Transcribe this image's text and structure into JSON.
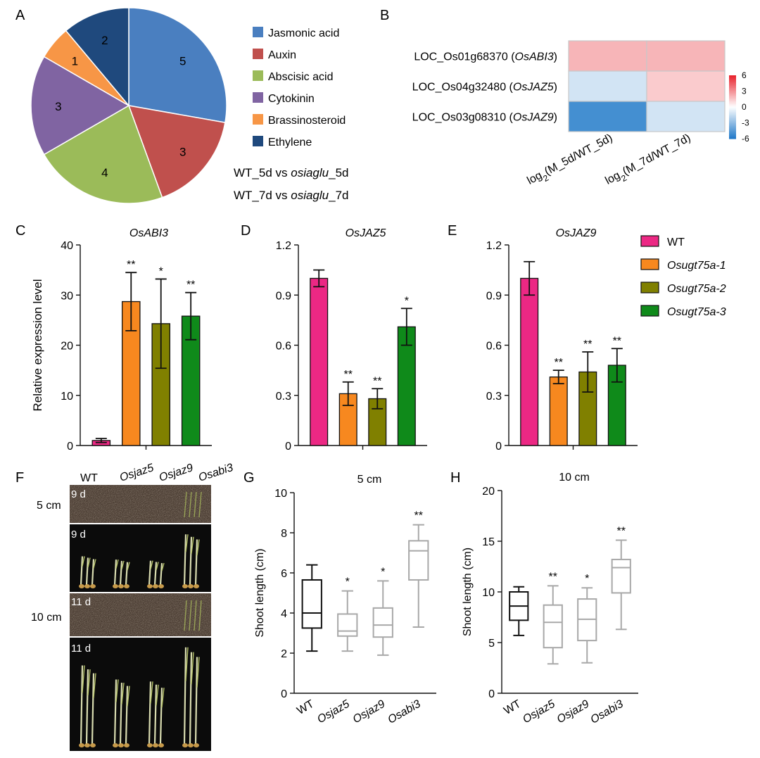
{
  "panels": {
    "a": "A",
    "b": "B",
    "c": "C",
    "d": "D",
    "e": "E",
    "f": "F",
    "g": "G",
    "h": "H"
  },
  "colors": {
    "wt": "#ec2884",
    "l1": "#f7881f",
    "l2": "#808000",
    "l3": "#0f8a1a",
    "heat_pos": "#e8202a",
    "heat_neg": "#1f78c8",
    "box_dark": "#111111",
    "box_light": "#a8a8a8"
  },
  "chart_data": [
    {
      "id": "pie",
      "type": "pie",
      "title": "",
      "slices": [
        {
          "label": "Jasmonic acid",
          "value": 5,
          "color": "#4a7fc0"
        },
        {
          "label": "Auxin",
          "value": 3,
          "color": "#c0504d"
        },
        {
          "label": "Abscisic acid",
          "value": 4,
          "color": "#9bbb59"
        },
        {
          "label": "Cytokinin",
          "value": 3,
          "color": "#8064a2"
        },
        {
          "label": "Brassinosteroid",
          "value": 1,
          "color": "#f79646"
        },
        {
          "label": "Ethylene",
          "value": 2,
          "color": "#1f497d"
        }
      ],
      "caption1": {
        "pre": "WT_5d vs ",
        "it": "osiaglu",
        "post": "_5d"
      },
      "caption2": {
        "pre": "WT_7d vs ",
        "it": "osiaglu",
        "post": "_7d"
      }
    },
    {
      "id": "heat",
      "type": "heatmap",
      "rows": [
        {
          "loc": "LOC_Os01g68370",
          "gene": "OsABI3",
          "values": [
            2.0,
            2.0
          ]
        },
        {
          "loc": "LOC_Os04g32480",
          "gene": "OsJAZ5",
          "values": [
            -1.2,
            1.4
          ]
        },
        {
          "loc": "LOC_Os03g08310",
          "gene": "OsJAZ9",
          "values": [
            -5.0,
            -1.2
          ]
        }
      ],
      "columns": [
        {
          "pre": "log",
          "sub": "2",
          "post": "(M_5d/WT_5d)"
        },
        {
          "pre": "log",
          "sub": "2",
          "post": "(M_7d/WT_7d)"
        }
      ],
      "scale": {
        "min": -6,
        "max": 6,
        "ticks": [
          "6",
          "3",
          "0",
          "-3",
          "-6"
        ]
      }
    },
    {
      "id": "barC",
      "type": "bar",
      "title": "OsABI3",
      "ylabel": "Relative expression level",
      "ylim": [
        0,
        40
      ],
      "yticks": [
        "0",
        "10",
        "20",
        "30",
        "40"
      ],
      "series": [
        "WT",
        "Osugt75a-1",
        "Osugt75a-2",
        "Osugt75a-3"
      ],
      "values": [
        1.0,
        28.7,
        24.3,
        25.8
      ],
      "errors": [
        0.4,
        5.8,
        8.9,
        4.7
      ],
      "sig": [
        "",
        "**",
        "*",
        "**"
      ]
    },
    {
      "id": "barD",
      "type": "bar",
      "title": "OsJAZ5",
      "ylabel": "",
      "ylim": [
        0,
        1.2
      ],
      "yticks": [
        "0",
        "0.3",
        "0.6",
        "0.9",
        "1.2"
      ],
      "series": [
        "WT",
        "Osugt75a-1",
        "Osugt75a-2",
        "Osugt75a-3"
      ],
      "values": [
        1.0,
        0.31,
        0.28,
        0.71
      ],
      "errors": [
        0.05,
        0.07,
        0.06,
        0.11
      ],
      "sig": [
        "",
        "**",
        "**",
        "*"
      ]
    },
    {
      "id": "barE",
      "type": "bar",
      "title": "OsJAZ9",
      "ylabel": "",
      "ylim": [
        0,
        1.2
      ],
      "yticks": [
        "0",
        "0.3",
        "0.6",
        "0.9",
        "1.2"
      ],
      "series": [
        "WT",
        "Osugt75a-1",
        "Osugt75a-2",
        "Osugt75a-3"
      ],
      "values": [
        1.0,
        0.41,
        0.44,
        0.48
      ],
      "errors": [
        0.1,
        0.04,
        0.12,
        0.1
      ],
      "sig": [
        "",
        "**",
        "**",
        "**"
      ]
    },
    {
      "id": "boxG",
      "type": "box",
      "title": "5 cm",
      "ylabel": "Shoot length (cm)",
      "ylim": [
        0,
        10
      ],
      "yticks": [
        "0",
        "2",
        "4",
        "6",
        "8",
        "10"
      ],
      "categories": [
        "WT",
        "Osjaz5",
        "Osjaz9",
        "Osabi3"
      ],
      "boxes": [
        {
          "min": 2.1,
          "q1": 3.25,
          "median": 4.0,
          "q3": 5.65,
          "max": 6.4
        },
        {
          "min": 2.1,
          "q1": 2.85,
          "median": 3.1,
          "q3": 3.95,
          "max": 5.1
        },
        {
          "min": 1.9,
          "q1": 2.8,
          "median": 3.4,
          "q3": 4.25,
          "max": 5.6
        },
        {
          "min": 3.3,
          "q1": 5.65,
          "median": 7.1,
          "q3": 7.6,
          "max": 8.4
        }
      ],
      "sig": [
        "",
        "*",
        "*",
        "**"
      ]
    },
    {
      "id": "boxH",
      "type": "box",
      "title": "10 cm",
      "ylabel": "Shoot length (cm)",
      "ylim": [
        0,
        20
      ],
      "yticks": [
        "0",
        "5",
        "10",
        "15",
        "20"
      ],
      "categories": [
        "WT",
        "Osjaz5",
        "Osjaz9",
        "Osabi3"
      ],
      "boxes": [
        {
          "min": 5.7,
          "q1": 7.2,
          "median": 8.6,
          "q3": 10.0,
          "max": 10.5
        },
        {
          "min": 2.9,
          "q1": 4.5,
          "median": 7.0,
          "q3": 8.7,
          "max": 10.6
        },
        {
          "min": 3.0,
          "q1": 5.2,
          "median": 7.3,
          "q3": 9.3,
          "max": 10.4
        },
        {
          "min": 6.3,
          "q1": 9.9,
          "median": 12.4,
          "q3": 13.2,
          "max": 15.1
        }
      ],
      "sig": [
        "",
        "**",
        "*",
        "**"
      ]
    }
  ],
  "bar_legend": [
    {
      "label": "WT",
      "italic": false
    },
    {
      "label": "Osugt75a-1",
      "italic": true
    },
    {
      "label": "Osugt75a-2",
      "italic": true
    },
    {
      "label": "Osugt75a-3",
      "italic": true
    }
  ],
  "photo": {
    "headers": [
      "WT",
      "Osjaz5",
      "Osjaz9",
      "Osabi3"
    ],
    "day_labels": [
      "9 d",
      "9 d",
      "11 d",
      "11 d"
    ],
    "depths": [
      "5 cm",
      "10 cm"
    ]
  }
}
